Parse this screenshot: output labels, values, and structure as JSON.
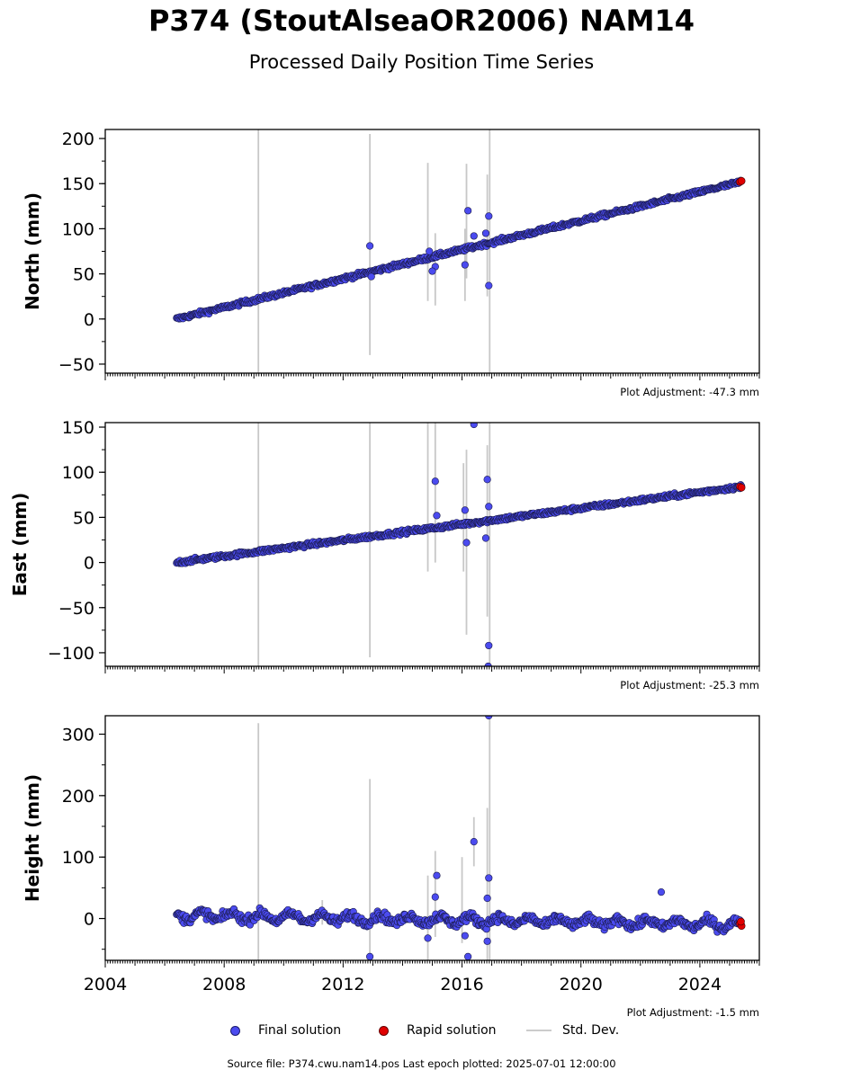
{
  "title": "P374 (StoutAlseaOR2006) NAM14",
  "subtitle": "Processed Daily Position Time Series",
  "source": "Source file: P374.cwu.nam14.pos  Last epoch plotted: 2025-07-01 12:00:00",
  "legend": [
    {
      "label": "Final solution",
      "color": "#4b4bef"
    },
    {
      "label": "Rapid solution",
      "color": "#e00000"
    },
    {
      "label": "Std. Dev.",
      "color": "#cccccc"
    }
  ],
  "chart_data": [
    {
      "type": "scatter",
      "ylabel": "North (mm)",
      "adjustment": "Plot Adjustment: -47.3 mm",
      "xlim": [
        2004,
        2026
      ],
      "ylim": [
        -60,
        210
      ],
      "yticks": [
        -50,
        0,
        50,
        100,
        150,
        200
      ],
      "trend": {
        "start": [
          2006.4,
          0
        ],
        "end": [
          2025.4,
          152
        ]
      },
      "outliers": [
        {
          "x": 2012.9,
          "y": 81
        },
        {
          "x": 2012.95,
          "y": 47
        },
        {
          "x": 2015.1,
          "y": 58
        },
        {
          "x": 2015.0,
          "y": 53
        },
        {
          "x": 2016.1,
          "y": 60
        },
        {
          "x": 2016.2,
          "y": 120
        },
        {
          "x": 2016.4,
          "y": 92
        },
        {
          "x": 2016.9,
          "y": 114
        },
        {
          "x": 2016.9,
          "y": 37
        },
        {
          "x": 2016.8,
          "y": 95
        },
        {
          "x": 2014.9,
          "y": 75
        }
      ],
      "errorbars": [
        {
          "x": 2009.15,
          "lo": -60,
          "hi": 210
        },
        {
          "x": 2012.9,
          "lo": -40,
          "hi": 205
        },
        {
          "x": 2014.85,
          "lo": 20,
          "hi": 173
        },
        {
          "x": 2015.1,
          "lo": 15,
          "hi": 95
        },
        {
          "x": 2016.1,
          "lo": 20,
          "hi": 100
        },
        {
          "x": 2016.15,
          "lo": 45,
          "hi": 172
        },
        {
          "x": 2016.85,
          "lo": 25,
          "hi": 160
        },
        {
          "x": 2016.93,
          "lo": -60,
          "hi": 210
        }
      ],
      "rapid": [
        {
          "x": 2025.35,
          "y": 152
        },
        {
          "x": 2025.4,
          "y": 153
        }
      ]
    },
    {
      "type": "scatter",
      "ylabel": "East (mm)",
      "adjustment": "Plot Adjustment: -25.3 mm",
      "xlim": [
        2004,
        2026
      ],
      "ylim": [
        -115,
        155
      ],
      "yticks": [
        -100,
        -50,
        0,
        50,
        100,
        150
      ],
      "trend": {
        "start": [
          2006.4,
          0
        ],
        "end": [
          2025.4,
          84
        ]
      },
      "outliers": [
        {
          "x": 2015.1,
          "y": 90
        },
        {
          "x": 2015.15,
          "y": 52
        },
        {
          "x": 2016.1,
          "y": 58
        },
        {
          "x": 2016.15,
          "y": 22
        },
        {
          "x": 2016.4,
          "y": 153
        },
        {
          "x": 2016.85,
          "y": 92
        },
        {
          "x": 2016.9,
          "y": 62
        },
        {
          "x": 2016.9,
          "y": -92
        },
        {
          "x": 2016.88,
          "y": -115
        },
        {
          "x": 2016.8,
          "y": 27
        }
      ],
      "errorbars": [
        {
          "x": 2009.15,
          "lo": -115,
          "hi": 155
        },
        {
          "x": 2012.9,
          "lo": -105,
          "hi": 155
        },
        {
          "x": 2014.85,
          "lo": -10,
          "hi": 155
        },
        {
          "x": 2015.1,
          "lo": 0,
          "hi": 155
        },
        {
          "x": 2016.05,
          "lo": -10,
          "hi": 110
        },
        {
          "x": 2016.15,
          "lo": -80,
          "hi": 125
        },
        {
          "x": 2016.85,
          "lo": -60,
          "hi": 130
        },
        {
          "x": 2016.93,
          "lo": -115,
          "hi": 155
        }
      ],
      "rapid": [
        {
          "x": 2025.35,
          "y": 84
        },
        {
          "x": 2025.4,
          "y": 83
        }
      ]
    },
    {
      "type": "scatter",
      "ylabel": "Height (mm)",
      "adjustment": "Plot Adjustment: -1.5 mm",
      "xlim": [
        2004,
        2026
      ],
      "ylim": [
        -68,
        330
      ],
      "yticks": [
        0,
        100,
        200,
        300
      ],
      "xticks": [
        2004,
        2008,
        2012,
        2016,
        2020,
        2024
      ],
      "trend": {
        "start": [
          2006.4,
          5
        ],
        "end": [
          2025.4,
          -10
        ]
      },
      "outliers": [
        {
          "x": 2012.9,
          "y": -62
        },
        {
          "x": 2014.85,
          "y": -32
        },
        {
          "x": 2015.15,
          "y": 70
        },
        {
          "x": 2015.1,
          "y": 35
        },
        {
          "x": 2016.1,
          "y": -28
        },
        {
          "x": 2016.2,
          "y": -62
        },
        {
          "x": 2016.4,
          "y": 125
        },
        {
          "x": 2016.85,
          "y": 33
        },
        {
          "x": 2016.9,
          "y": 66
        },
        {
          "x": 2016.9,
          "y": 330
        },
        {
          "x": 2016.85,
          "y": -37
        },
        {
          "x": 2022.7,
          "y": 43
        }
      ],
      "errorbars": [
        {
          "x": 2009.15,
          "lo": -68,
          "hi": 318
        },
        {
          "x": 2012.9,
          "lo": -68,
          "hi": 227
        },
        {
          "x": 2014.85,
          "lo": -68,
          "hi": 70
        },
        {
          "x": 2015.1,
          "lo": -30,
          "hi": 110
        },
        {
          "x": 2016.0,
          "lo": -40,
          "hi": 100
        },
        {
          "x": 2016.4,
          "lo": 85,
          "hi": 165
        },
        {
          "x": 2016.85,
          "lo": -68,
          "hi": 180
        },
        {
          "x": 2016.93,
          "lo": -68,
          "hi": 330
        },
        {
          "x": 2011.3,
          "lo": -10,
          "hi": 30
        }
      ],
      "rapid": [
        {
          "x": 2025.35,
          "y": -8
        },
        {
          "x": 2025.4,
          "y": -12
        },
        {
          "x": 2025.38,
          "y": -5
        }
      ]
    }
  ]
}
